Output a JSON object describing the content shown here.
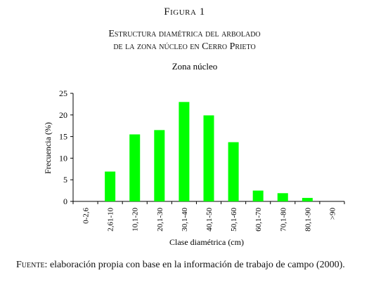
{
  "figure": {
    "label": "Figura 1",
    "title_line1": "Estructura diamétrica del arbolado",
    "title_line2": "de la zona núcleo en Cerro Prieto"
  },
  "source": {
    "lead": "Fuente:",
    "text": " elaboración propia con base en la información de trabajo de campo (2000)."
  },
  "chart_data": {
    "type": "bar",
    "title": "Zona núcleo",
    "xlabel": "Clase diamétrica (cm)",
    "ylabel": "Frecuencia (%)",
    "categories": [
      "0-2,6",
      "2,61-10",
      "10,1-20",
      "20,1-30",
      "30,1-40",
      "40,1-50",
      "50,1-60",
      "60,1-70",
      "70,1-80",
      "80,1-90",
      ">90"
    ],
    "values": [
      0,
      6.9,
      15.5,
      16.5,
      23.0,
      19.9,
      13.7,
      2.5,
      1.9,
      0.8,
      0
    ],
    "ylim": [
      0,
      25
    ],
    "yticks": [
      0,
      5,
      10,
      15,
      20,
      25
    ],
    "grid": false,
    "bar_color": "#00ff00"
  }
}
